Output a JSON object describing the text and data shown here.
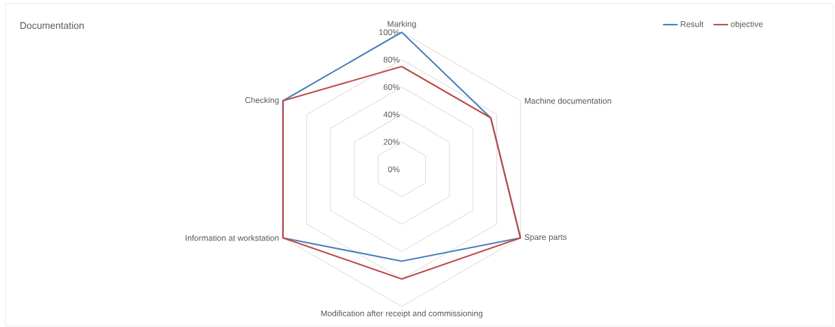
{
  "chart_data": {
    "type": "radar",
    "title": "Documentation",
    "categories": [
      "Marking",
      "Machine documentation",
      "Spare parts",
      "Modification after receipt and commissioning",
      "Information at workstation",
      "Checking"
    ],
    "series": [
      {
        "name": "Result",
        "color": "#4a7ebb",
        "values": [
          100,
          75,
          100,
          67,
          100,
          100
        ]
      },
      {
        "name": "objective",
        "color": "#be4b48",
        "values": [
          75,
          75,
          100,
          80,
          100,
          100
        ]
      }
    ],
    "ylim": [
      0,
      100
    ],
    "yticks": [
      {
        "value": 0,
        "label": "0%"
      },
      {
        "value": 20,
        "label": "20%"
      },
      {
        "value": 40,
        "label": "40%"
      },
      {
        "value": 60,
        "label": "60%"
      },
      {
        "value": 80,
        "label": "80%"
      },
      {
        "value": 100,
        "label": "100%"
      }
    ],
    "grid": true,
    "legend": "top right",
    "line_style": "solid"
  }
}
